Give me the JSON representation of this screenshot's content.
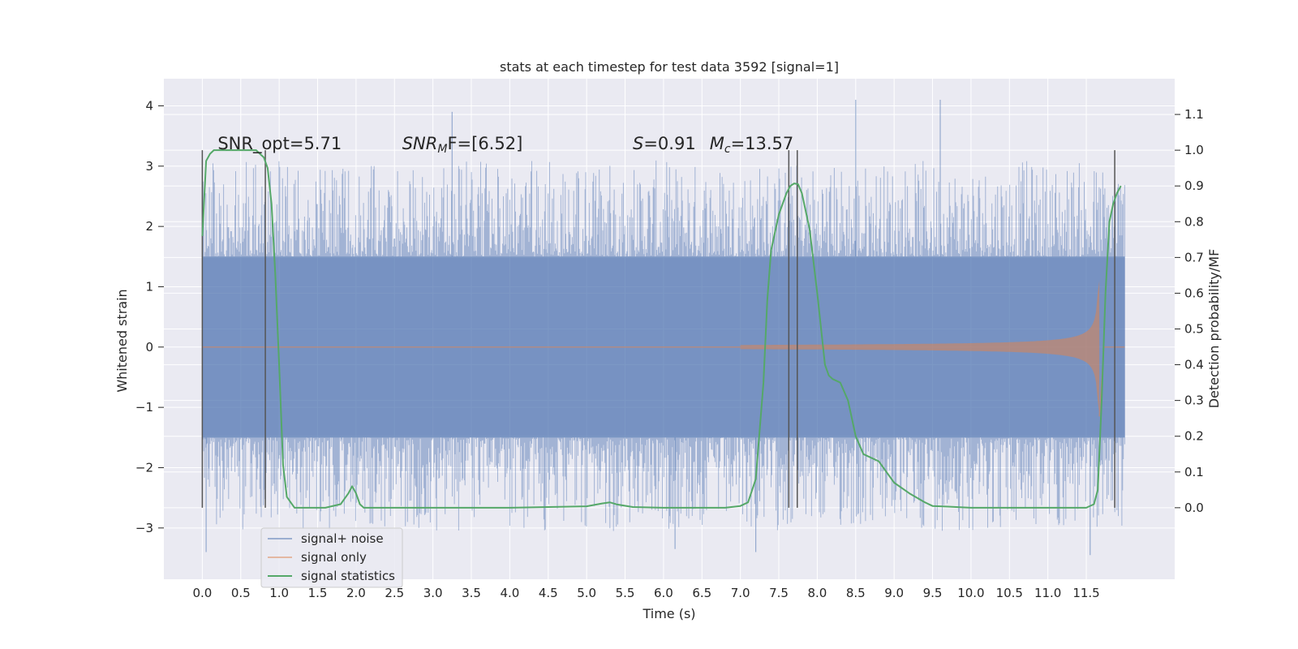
{
  "chart_data": {
    "type": "line",
    "title": "stats at each timestep for test data 3592 [signal=1]",
    "xlabel": "Time (s)",
    "ylabel_left": "Whitened strain",
    "ylabel_right": "Detection probability/MF",
    "xlim": [
      -0.5,
      12.65
    ],
    "ylim_left": [
      -3.85,
      4.45
    ],
    "ylim_right": [
      -0.2,
      1.2
    ],
    "x_ticks": [
      "0.0",
      "0.5",
      "1.0",
      "1.5",
      "2.0",
      "2.5",
      "3.0",
      "3.5",
      "4.0",
      "4.5",
      "5.0",
      "5.5",
      "6.0",
      "6.5",
      "7.0",
      "7.5",
      "8.0",
      "8.5",
      "9.0",
      "9.5",
      "10.0",
      "10.5",
      "11.0",
      "11.5"
    ],
    "y_ticks_left": [
      "−3",
      "−2",
      "−1",
      "0",
      "1",
      "2",
      "3",
      "4"
    ],
    "y_ticks_right": [
      "0.0",
      "0.1",
      "0.2",
      "0.3",
      "0.4",
      "0.5",
      "0.6",
      "0.7",
      "0.8",
      "0.9",
      "1.0",
      "1.1"
    ],
    "grid": true,
    "legend_position": "lower-left",
    "annotations": [
      {
        "label": "SNR_opt=5.71",
        "x": 0.2,
        "y_right": 1.0
      },
      {
        "label_main": "SNR",
        "label_sub": "M",
        "label_rest": "F=[6.52]",
        "x": 2.6,
        "y_right": 1.0
      },
      {
        "label_main": "S",
        "label_rest": "=0.91",
        "x": 5.6,
        "y_right": 1.0
      },
      {
        "label_main": "M",
        "label_sub": "c",
        "label_rest": "=13.57",
        "x": 6.6,
        "y_right": 1.0
      }
    ],
    "vertical_lines": [
      {
        "x": 0.0,
        "y_right_range": [
          0.0,
          1.0
        ]
      },
      {
        "x": 0.82,
        "y_right_range": [
          0.0,
          1.0
        ]
      },
      {
        "x": 7.63,
        "y_right_range": [
          0.0,
          1.0
        ]
      },
      {
        "x": 7.74,
        "y_right_range": [
          0.0,
          1.0
        ]
      },
      {
        "x": 11.87,
        "y_right_range": [
          0.0,
          1.0
        ]
      }
    ],
    "series": [
      {
        "name": "signal+ noise",
        "color": "#4c72b0",
        "axis": "left",
        "x_range": [
          0.0,
          12.0
        ],
        "typical_range": [
          -1.5,
          1.5
        ],
        "peaks": [
          {
            "x": 3.25,
            "y": 3.9
          },
          {
            "x": 8.5,
            "y": 4.1
          },
          {
            "x": 9.6,
            "y": 4.1
          },
          {
            "x": 0.05,
            "y": -3.4
          },
          {
            "x": 6.15,
            "y": -3.35
          },
          {
            "x": 7.2,
            "y": -3.4
          },
          {
            "x": 11.55,
            "y": -3.45
          }
        ]
      },
      {
        "name": "signal only",
        "color": "#dd8452",
        "axis": "left",
        "chirp_start": 7.0,
        "merger_x": 11.67,
        "peak_amplitude": 1.1
      },
      {
        "name": "signal statistics",
        "color": "#55a868",
        "axis": "right",
        "x": [
          0.0,
          0.05,
          0.1,
          0.15,
          0.2,
          0.3,
          0.4,
          0.5,
          0.6,
          0.7,
          0.75,
          0.8,
          0.85,
          0.9,
          0.95,
          1.0,
          1.05,
          1.1,
          1.2,
          1.4,
          1.6,
          1.8,
          1.9,
          1.95,
          2.0,
          2.05,
          2.1,
          2.2,
          2.5,
          3.0,
          4.0,
          5.0,
          5.2,
          5.3,
          5.4,
          5.6,
          6.0,
          6.5,
          6.8,
          7.0,
          7.1,
          7.2,
          7.3,
          7.35,
          7.4,
          7.5,
          7.6,
          7.65,
          7.7,
          7.75,
          7.8,
          7.9,
          8.0,
          8.1,
          8.15,
          8.2,
          8.3,
          8.4,
          8.5,
          8.6,
          8.7,
          8.8,
          8.9,
          9.0,
          9.2,
          9.4,
          9.5,
          9.7,
          10.0,
          10.5,
          11.0,
          11.5,
          11.6,
          11.65,
          11.7,
          11.75,
          11.8,
          11.85,
          11.9,
          11.95
        ],
        "y": [
          0.76,
          0.97,
          0.99,
          1.0,
          1.0,
          1.0,
          1.0,
          1.0,
          1.0,
          1.0,
          0.99,
          0.98,
          0.95,
          0.85,
          0.65,
          0.4,
          0.12,
          0.03,
          0.0,
          0.0,
          0.0,
          0.01,
          0.04,
          0.06,
          0.04,
          0.01,
          0.0,
          0.0,
          0.0,
          0.0,
          0.0,
          0.004,
          0.012,
          0.015,
          0.009,
          0.002,
          0.0,
          0.0,
          0.0,
          0.005,
          0.015,
          0.08,
          0.35,
          0.58,
          0.72,
          0.82,
          0.88,
          0.9,
          0.907,
          0.905,
          0.88,
          0.78,
          0.6,
          0.4,
          0.37,
          0.36,
          0.35,
          0.3,
          0.2,
          0.15,
          0.14,
          0.13,
          0.1,
          0.07,
          0.04,
          0.015,
          0.005,
          0.003,
          0.0,
          0.0,
          0.0,
          0.0,
          0.01,
          0.05,
          0.3,
          0.6,
          0.8,
          0.85,
          0.88,
          0.9
        ]
      }
    ]
  }
}
